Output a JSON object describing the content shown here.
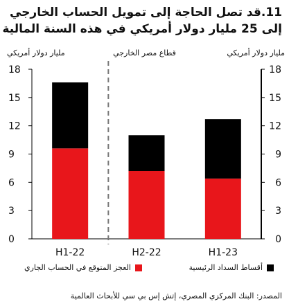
{
  "title_lines": [
    "11.قد تصل الحاجة إلى تمويل الحساب الخارجي",
    "إلى 25 مليار دولار أمريكي في هذه السنة المالية"
  ],
  "left_axis_label": "مليار دولار أمريكي",
  "right_axis_label": "مليار دولار أمريكي",
  "sector_label": "قطاع مصر الخارجي",
  "source": "المصدر: البنك المركزي المصري، إتش إس بي سي للأبحاث العالمية",
  "chart_data": {
    "type": "bar",
    "stacked": true,
    "categories": [
      "H1-22",
      "H2-22",
      "H1-23"
    ],
    "series": [
      {
        "name": "العجز المتوقع في الحساب الجاري",
        "values": [
          9.6,
          7.2,
          6.4
        ],
        "color": "#e8161b"
      },
      {
        "name": "أقساط السداد الرئيسية",
        "values": [
          7.0,
          3.8,
          6.3
        ],
        "color": "#000000"
      }
    ],
    "ylim": [
      0,
      18
    ],
    "yticks": [
      0,
      3,
      6,
      9,
      12,
      15,
      18
    ],
    "ytick_labels": [
      "0",
      "3",
      "6",
      "9",
      "12",
      "15",
      "18"
    ],
    "divider_after_category": 0,
    "legend_position": "bottom"
  }
}
